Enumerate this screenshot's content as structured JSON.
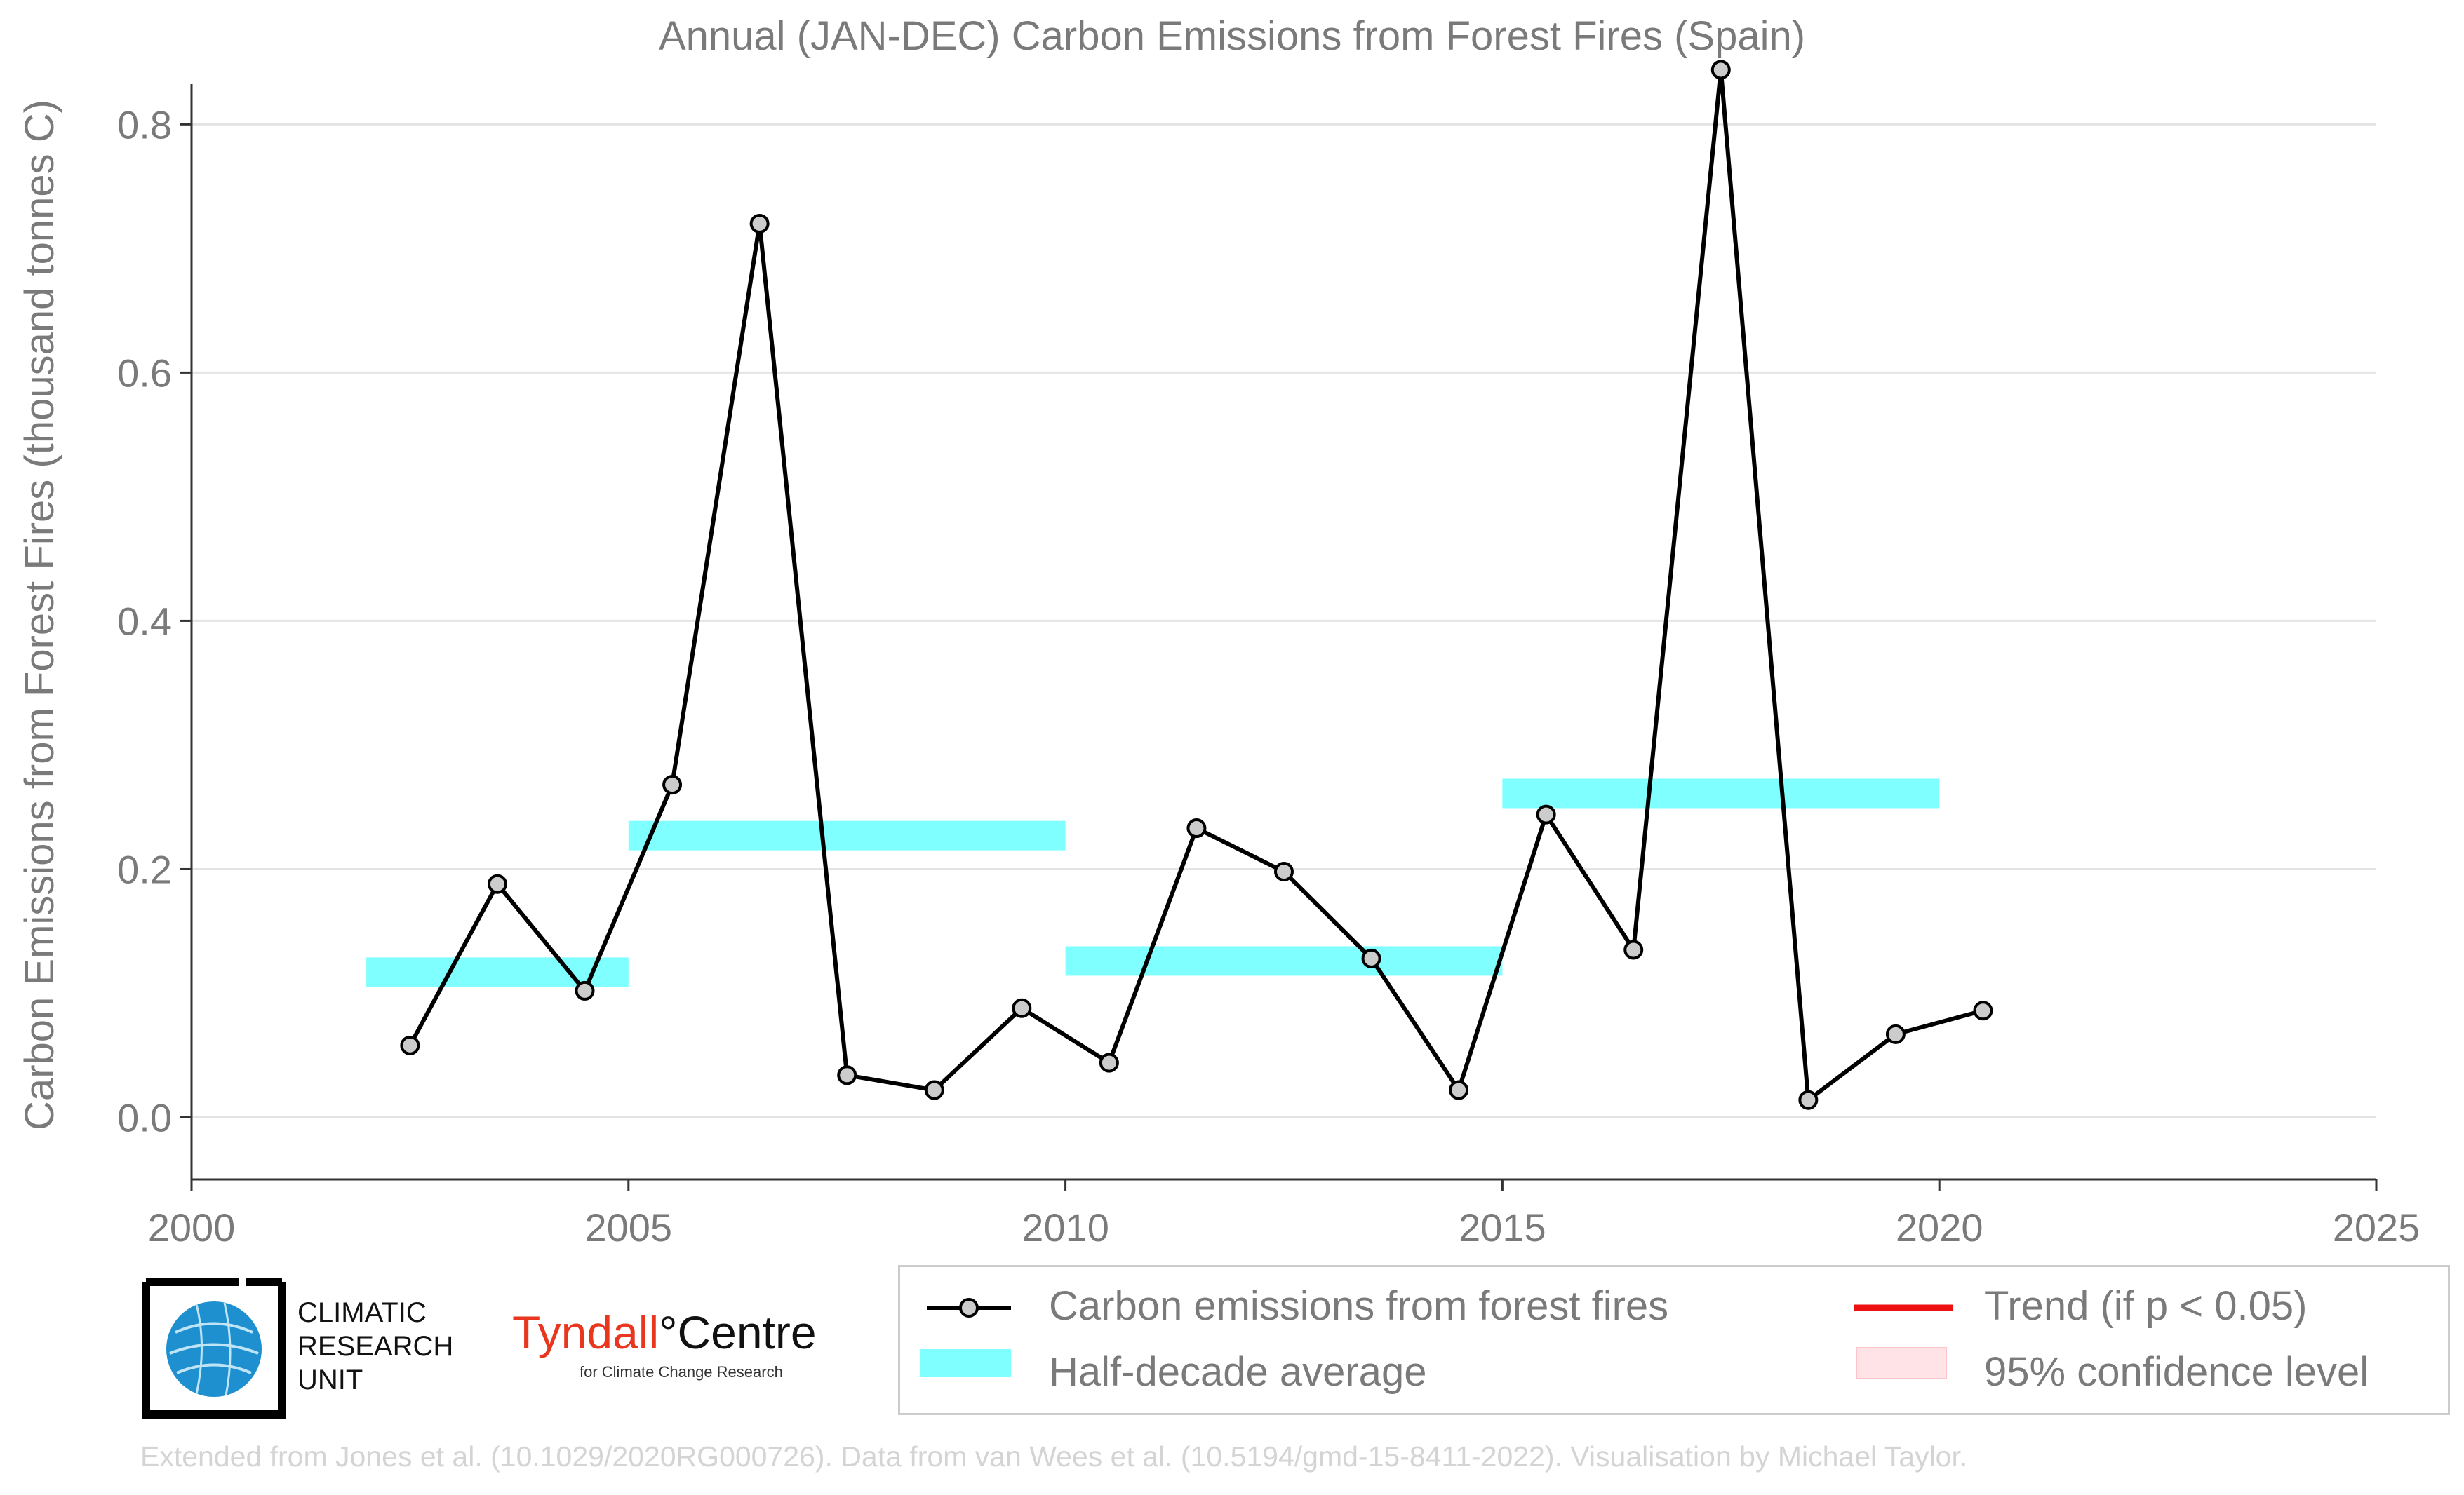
{
  "chart_data": {
    "type": "line",
    "title": "Annual (JAN-DEC) Carbon Emissions from Forest Fires (Spain)",
    "xlabel": "",
    "ylabel": "Carbon Emissions from Forest Fires (thousand tonnes C)",
    "xlim": [
      2000,
      2025
    ],
    "ylim": [
      -0.05,
      0.855
    ],
    "x_ticks": [
      2000,
      2005,
      2010,
      2015,
      2020,
      2025
    ],
    "x_tick_labels": [
      "2000",
      "2005",
      "2010",
      "2015",
      "2020",
      "2025"
    ],
    "y_ticks": [
      0.0,
      0.2,
      0.4,
      0.6,
      0.8
    ],
    "y_tick_labels": [
      "0.0",
      "0.2",
      "0.4",
      "0.6",
      "0.8"
    ],
    "grid": "horizontal",
    "series": [
      {
        "name": "Carbon emissions from forest fires",
        "color": "#000000",
        "marker_fill": "#cccccc",
        "x": [
          2002.5,
          2003.5,
          2004.5,
          2005.5,
          2006.5,
          2007.5,
          2008.5,
          2009.5,
          2010.5,
          2011.5,
          2012.5,
          2013.5,
          2014.5,
          2015.5,
          2016.5,
          2017.5,
          2018.5,
          2019.5,
          2020.5
        ],
        "y": [
          0.058,
          0.188,
          0.102,
          0.268,
          0.72,
          0.034,
          0.022,
          0.088,
          0.044,
          0.233,
          0.198,
          0.128,
          0.022,
          0.244,
          0.135,
          0.844,
          0.014,
          0.067,
          0.086
        ]
      }
    ],
    "half_decade_average": {
      "name": "Half-decade average",
      "color": "#7fffff",
      "segments": [
        {
          "x_start": 2002,
          "x_end": 2005,
          "y": 0.117
        },
        {
          "x_start": 2005,
          "x_end": 2010,
          "y": 0.227
        },
        {
          "x_start": 2010,
          "x_end": 2015,
          "y": 0.126
        },
        {
          "x_start": 2015,
          "x_end": 2020,
          "y": 0.261
        }
      ]
    },
    "legend": {
      "placement": "bottom-right",
      "entries": [
        {
          "label": "Carbon emissions from forest fires",
          "symbol": "line-marker",
          "color": "#000000"
        },
        {
          "label": "Trend (if p < 0.05)",
          "symbol": "line",
          "color": "#ee1111"
        },
        {
          "label": "Half-decade average",
          "symbol": "band",
          "color": "#7fffff"
        },
        {
          "label": "95% confidence level",
          "symbol": "patch",
          "color": "#ffe3e6"
        }
      ]
    }
  },
  "logos": {
    "cru_text": [
      "CLIMATIC",
      "RESEARCH",
      "UNIT"
    ],
    "tyndall_main_red": "Tyndall",
    "tyndall_main_dark": "°Centre",
    "tyndall_sub": "for Climate Change Research"
  },
  "footer": "Extended from Jones et al. (10.1029/2020RG000726). Data from van Wees et al. (10.5194/gmd-15-8411-2022). Visualisation by Michael Taylor."
}
